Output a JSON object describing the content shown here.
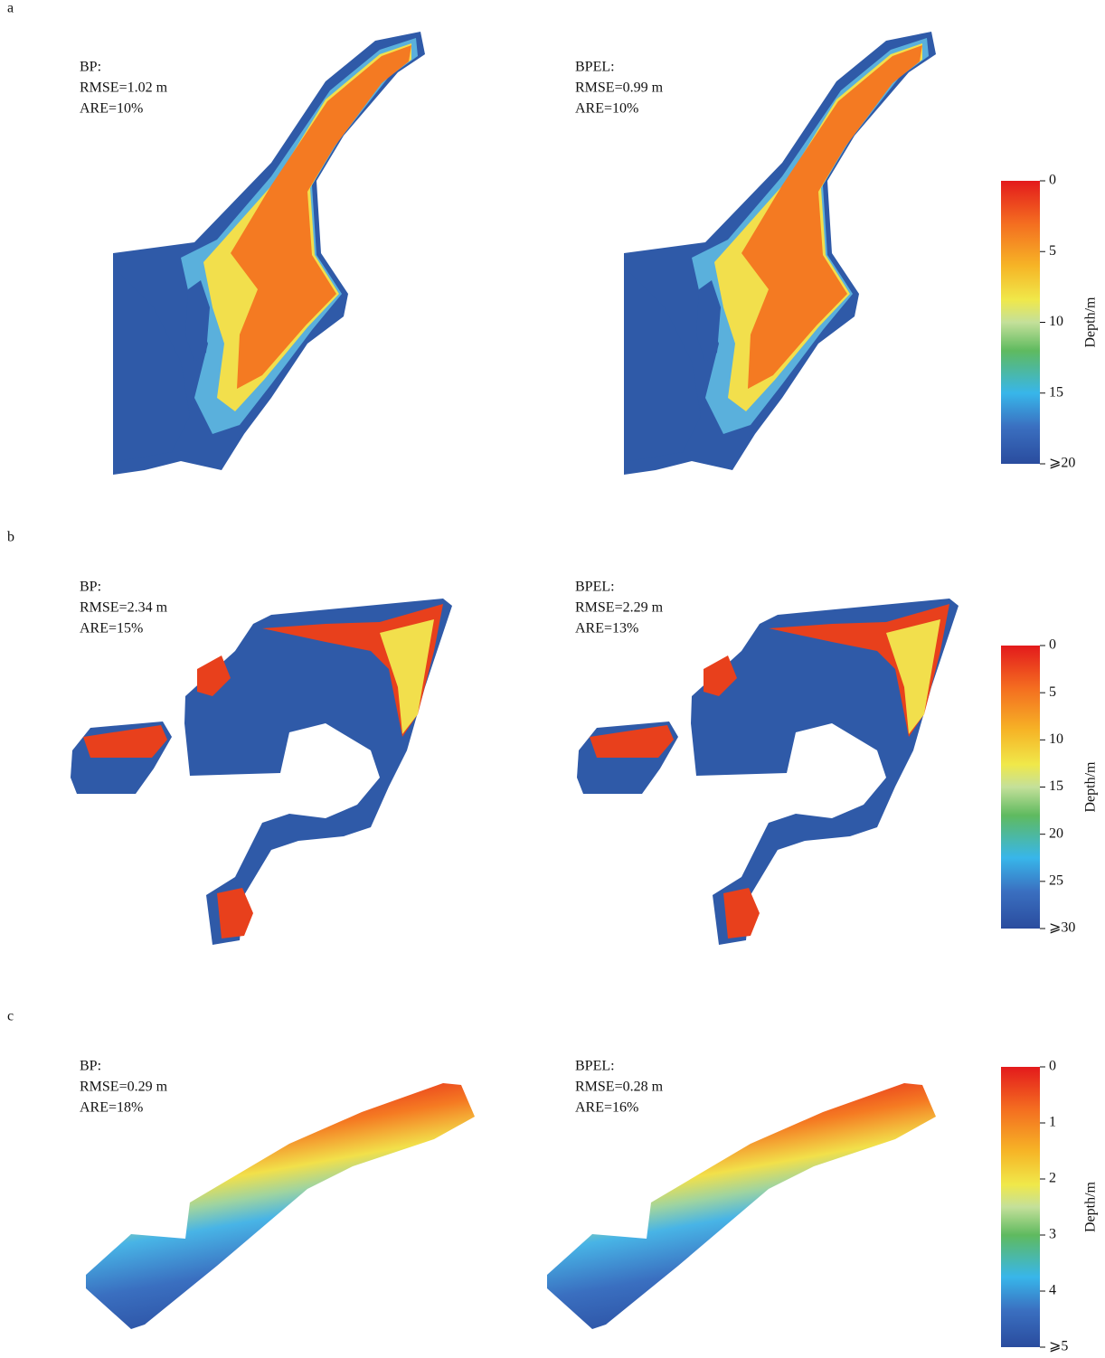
{
  "panels": [
    {
      "label": "a",
      "maps": [
        {
          "model": "BP:",
          "rmse": "RMSE=1.02 m",
          "are": "ARE=10%"
        },
        {
          "model": "BPEL:",
          "rmse": "RMSE=0.99 m",
          "are": "ARE=10%"
        }
      ],
      "colorbar": {
        "title": "Depth/m",
        "lim": [
          0,
          20
        ],
        "ticks": [
          0,
          5,
          10,
          15,
          {
            "value": 20,
            "label": "⩾20"
          }
        ]
      }
    },
    {
      "label": "b",
      "maps": [
        {
          "model": "BP:",
          "rmse": "RMSE=2.34 m",
          "are": "ARE=15%"
        },
        {
          "model": "BPEL:",
          "rmse": "RMSE=2.29 m",
          "are": "ARE=13%"
        }
      ],
      "colorbar": {
        "title": "Depth/m",
        "lim": [
          0,
          30
        ],
        "ticks": [
          0,
          5,
          10,
          15,
          20,
          25,
          {
            "value": 30,
            "label": "⩾30"
          }
        ]
      }
    },
    {
      "label": "c",
      "maps": [
        {
          "model": "BP:",
          "rmse": "RMSE=0.29 m",
          "are": "ARE=18%"
        },
        {
          "model": "BPEL:",
          "rmse": "RMSE=0.28 m",
          "are": "ARE=16%"
        }
      ],
      "colorbar": {
        "title": "Depth/m",
        "lim": [
          0,
          5
        ],
        "ticks": [
          0,
          1,
          2,
          3,
          4,
          {
            "value": 5,
            "label": "⩾5"
          }
        ]
      }
    }
  ]
}
